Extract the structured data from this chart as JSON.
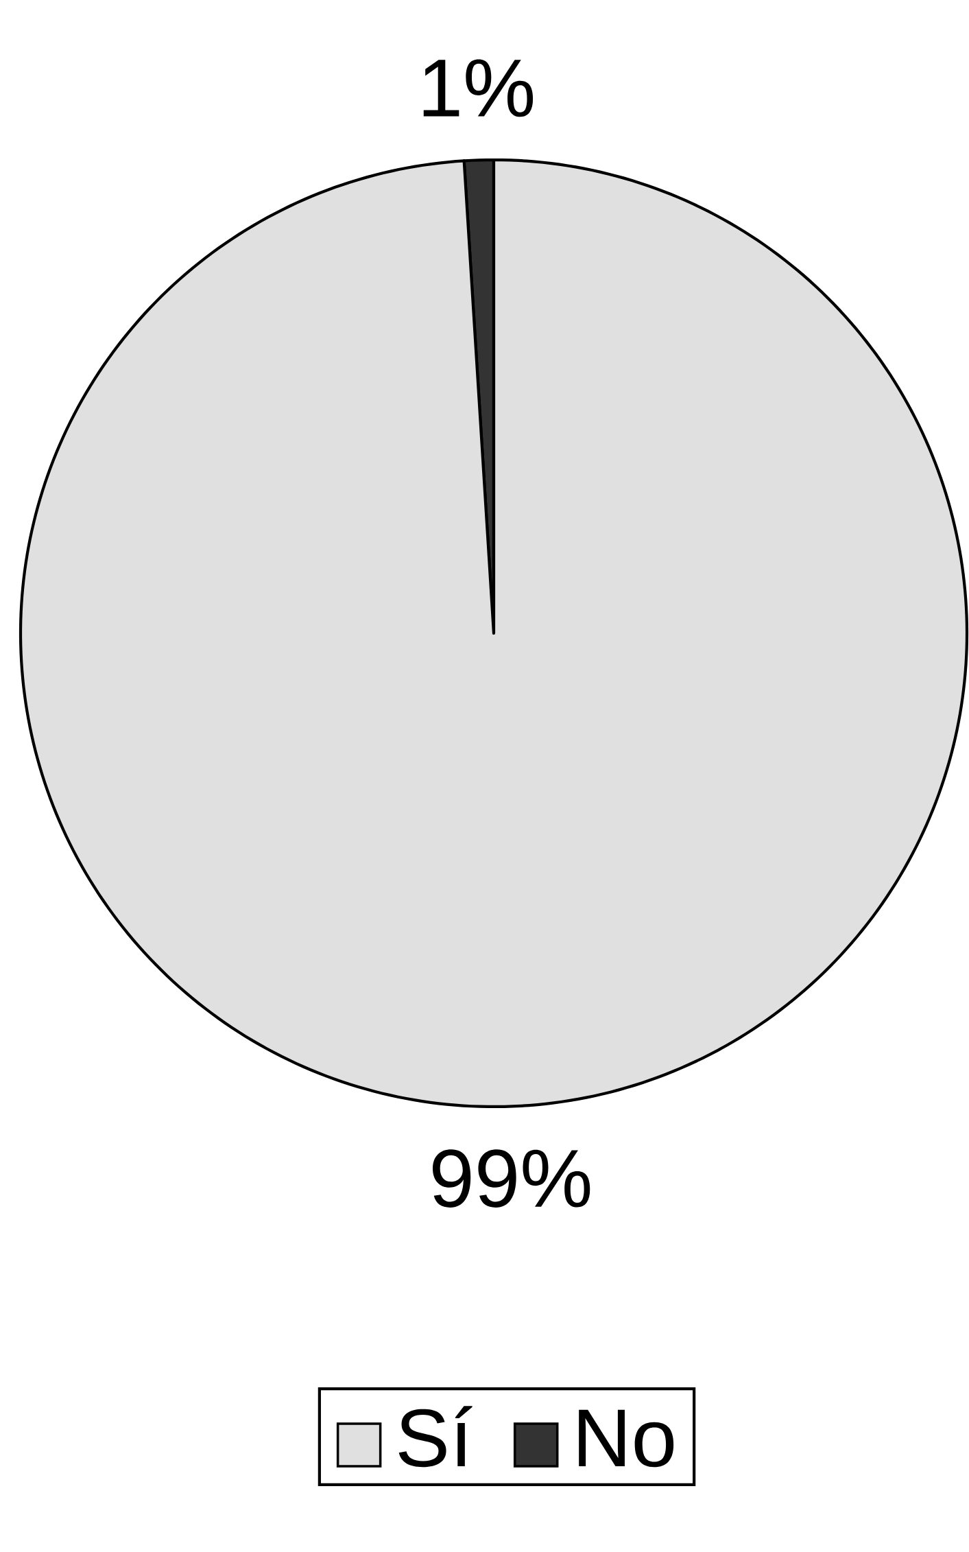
{
  "chart_data": {
    "type": "pie",
    "categories": [
      "Sí",
      "No"
    ],
    "values": [
      99,
      1
    ],
    "colors": [
      "#e0e0e0",
      "#333333"
    ],
    "value_labels": [
      "99%",
      "1%"
    ],
    "legend": "bottom"
  }
}
